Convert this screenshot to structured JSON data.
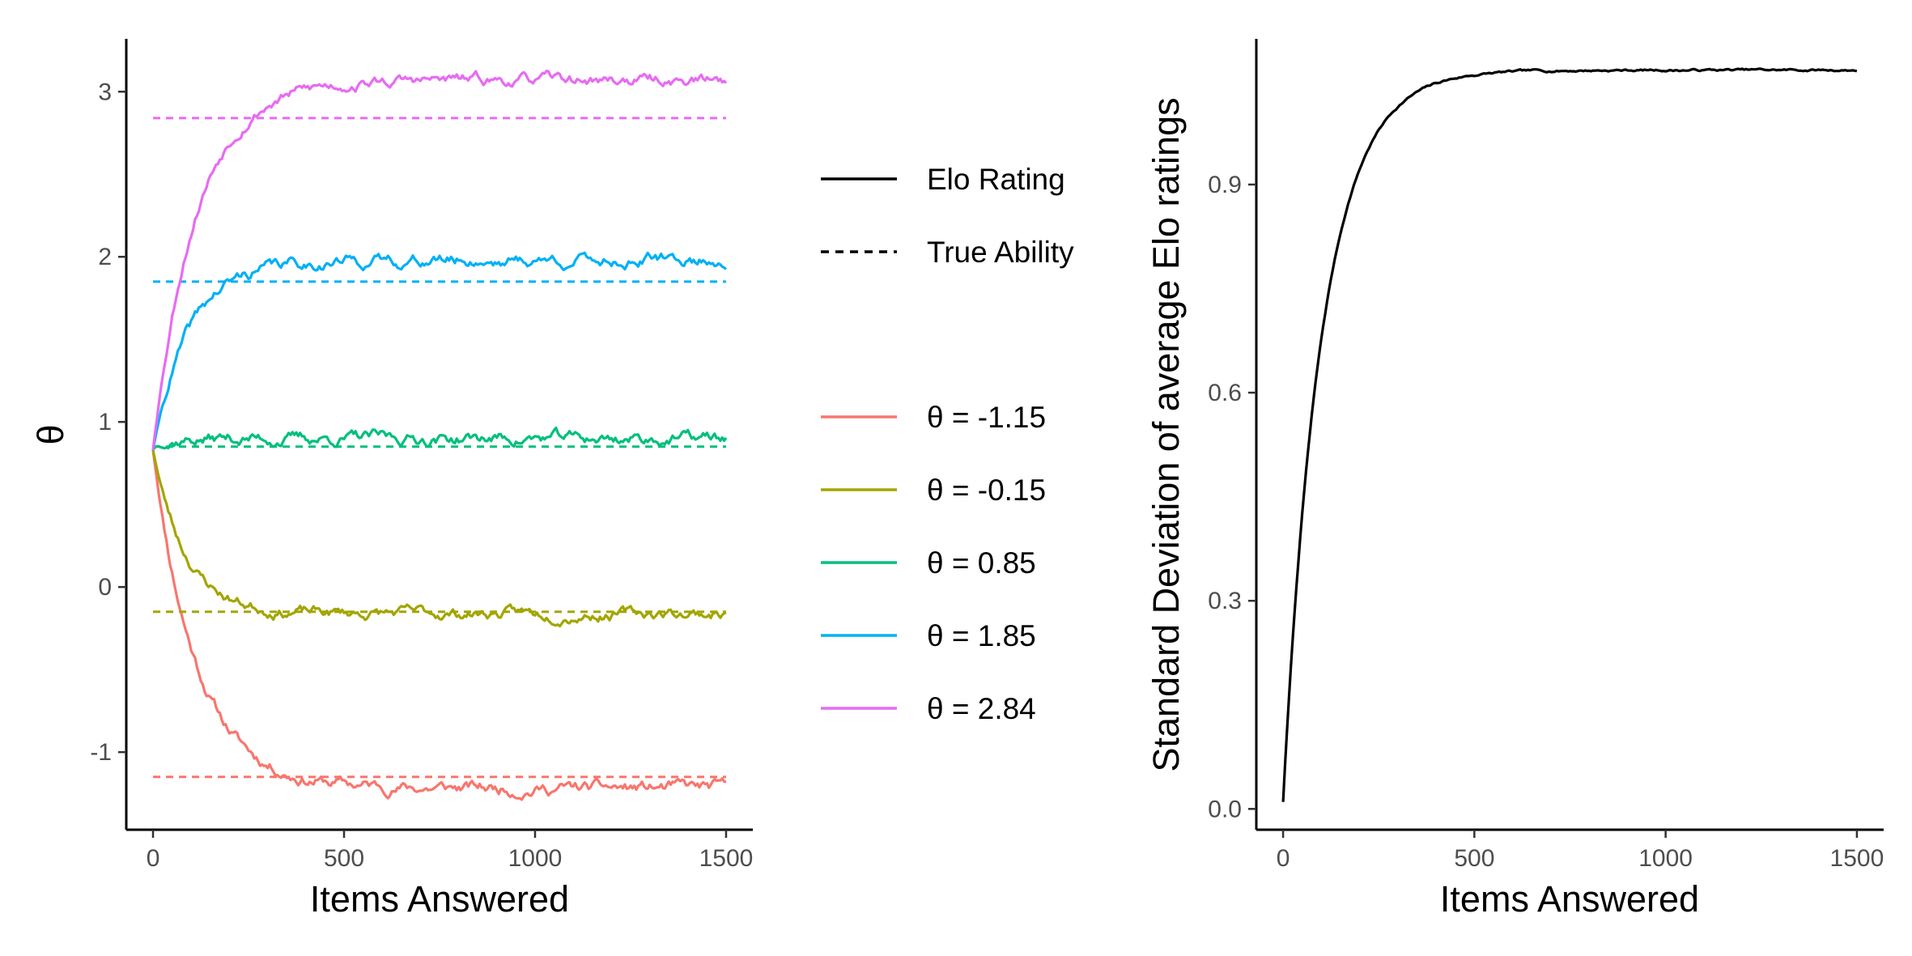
{
  "chart_data": [
    {
      "type": "line",
      "xlabel": "Items Answered",
      "ylabel": "θ",
      "xlim": [
        -70,
        1570
      ],
      "ylim": [
        -1.47,
        3.32
      ],
      "x_ticks": [
        0,
        500,
        1000,
        1500
      ],
      "x_tick_labels": [
        "0",
        "500",
        "1000",
        "1500"
      ],
      "y_ticks": [
        -1,
        0,
        1,
        2,
        3
      ],
      "y_tick_labels": [
        "-1",
        "0",
        "1",
        "2",
        "3"
      ],
      "grid": false,
      "legend_placement": "right",
      "linetype_legend": [
        {
          "label": "Elo Rating",
          "dash": "solid"
        },
        {
          "label": "True Ability",
          "dash": "dashed"
        }
      ],
      "series": [
        {
          "name": "θ = -1.15",
          "color": "#F8766D",
          "true_ability": -1.15,
          "start": 0.83,
          "plateau": -1.22,
          "tau": 115,
          "noise": 0.022,
          "seed": 11
        },
        {
          "name": "θ = -0.15",
          "color": "#A3A500",
          "true_ability": -0.15,
          "start": 0.83,
          "plateau": -0.16,
          "tau": 85,
          "noise": 0.02,
          "seed": 23
        },
        {
          "name": "θ = 0.85",
          "color": "#00BF7D",
          "true_ability": 0.85,
          "start": 0.83,
          "plateau": 0.9,
          "tau": 20,
          "noise": 0.022,
          "seed": 37
        },
        {
          "name": "θ = 1.85",
          "color": "#00B0F6",
          "true_ability": 1.85,
          "start": 0.83,
          "plateau": 1.98,
          "tau": 95,
          "noise": 0.022,
          "seed": 41
        },
        {
          "name": "θ = 2.84",
          "color": "#E76BF3",
          "true_ability": 2.84,
          "start": 0.83,
          "plateau": 3.07,
          "tau": 110,
          "noise": 0.02,
          "seed": 53
        }
      ]
    },
    {
      "type": "line",
      "xlabel": "Items Answered",
      "ylabel": "Standard Deviation of average Elo ratings",
      "xlim": [
        -70,
        1570
      ],
      "ylim": [
        -0.03,
        1.11
      ],
      "x_ticks": [
        0,
        500,
        1000,
        1500
      ],
      "x_tick_labels": [
        "0",
        "500",
        "1000",
        "1500"
      ],
      "y_ticks": [
        0.0,
        0.3,
        0.6,
        0.9
      ],
      "y_tick_labels": [
        "0.0",
        "0.3",
        "0.6",
        "0.9"
      ],
      "grid": false,
      "series": [
        {
          "color": "#000000",
          "start": 0.01,
          "plateau": 1.065,
          "tau": 100,
          "noise": 0.001,
          "seed": 7
        }
      ]
    }
  ]
}
